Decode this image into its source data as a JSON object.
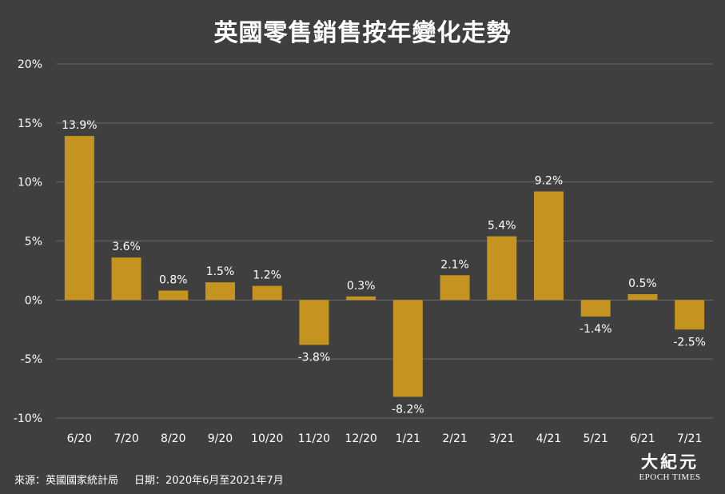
{
  "title": "英國零售銷售按年變化走勢",
  "footer": {
    "source": "來源：英國國家統計局",
    "date": "日期：2020年6月至2021年7月"
  },
  "logo": {
    "chinese": "大紀元",
    "english": "EPOCH TIMES"
  },
  "colors": {
    "background": "#3f3f3f",
    "bar": "#c49320",
    "grid": "#6a6a6a",
    "text": "#ffffff"
  },
  "chart_data": {
    "type": "bar",
    "title": "英國零售銷售按年變化走勢",
    "xlabel": "",
    "ylabel": "",
    "categories": [
      "6/20",
      "7/20",
      "8/20",
      "9/20",
      "10/20",
      "11/20",
      "12/20",
      "1/21",
      "2/21",
      "3/21",
      "4/21",
      "5/21",
      "6/21",
      "7/21"
    ],
    "values": [
      13.9,
      3.6,
      0.8,
      1.5,
      1.2,
      -3.8,
      0.3,
      -8.2,
      2.1,
      5.4,
      9.2,
      -1.4,
      0.5,
      -2.5
    ],
    "data_labels": [
      "13.9%",
      "3.6%",
      "0.8%",
      "1.5%",
      "1.2%",
      "-3.8%",
      "0.3%",
      "-8.2%",
      "2.1%",
      "5.4%",
      "9.2%",
      "-1.4%",
      "0.5%",
      "-2.5%"
    ],
    "y_ticks": [
      20,
      15,
      10,
      5,
      0,
      -5,
      -10
    ],
    "y_tick_labels": [
      "20%",
      "15%",
      "10%",
      "5%",
      "0%",
      "-5%",
      "-10%"
    ],
    "ylim": [
      -10,
      20
    ],
    "grid": true,
    "legend": "none"
  }
}
